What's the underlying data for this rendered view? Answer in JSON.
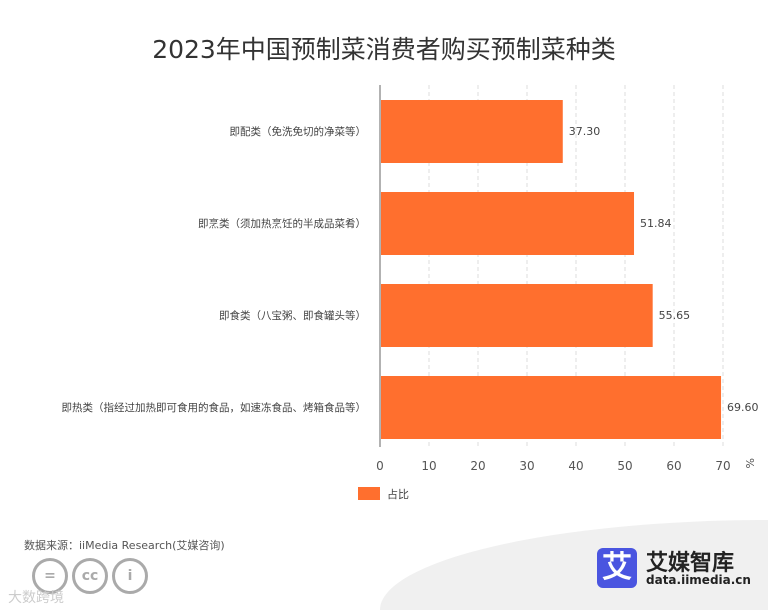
{
  "chart_data": {
    "type": "bar",
    "orientation": "horizontal",
    "title": "2023年中国预制菜消费者购买预制菜种类",
    "categories": [
      "即配类（免洗免切的净菜等）",
      "即烹类（须加热烹饪的半成品菜肴）",
      "即食类（八宝粥、即食罐头等）",
      "即热类（指经过加热即可食用的食品，如速冻食品、烤箱食品等）"
    ],
    "series": [
      {
        "name": "占比",
        "values": [
          37.3,
          51.84,
          55.65,
          69.6
        ],
        "labels": [
          "37.30",
          "51.84",
          "55.65",
          "69.60"
        ]
      }
    ],
    "xlim": [
      0,
      70
    ],
    "xticks": [
      "0",
      "10",
      "20",
      "30",
      "40",
      "50",
      "60",
      "70"
    ],
    "xunit": "%",
    "grid": "vertical dashed",
    "legend": "bottom",
    "color": "#ff6f2e"
  },
  "source": "数据来源：iiMedia Research(艾媒咨询)",
  "brand": {
    "name": "艾媒智库",
    "url": "data.iimedia.cn",
    "logo_char": "艾",
    "color": "#4a55e0"
  },
  "watermark": "大数跨境",
  "license_icons": [
    "equal-icon",
    "cc-icon",
    "person-icon"
  ]
}
